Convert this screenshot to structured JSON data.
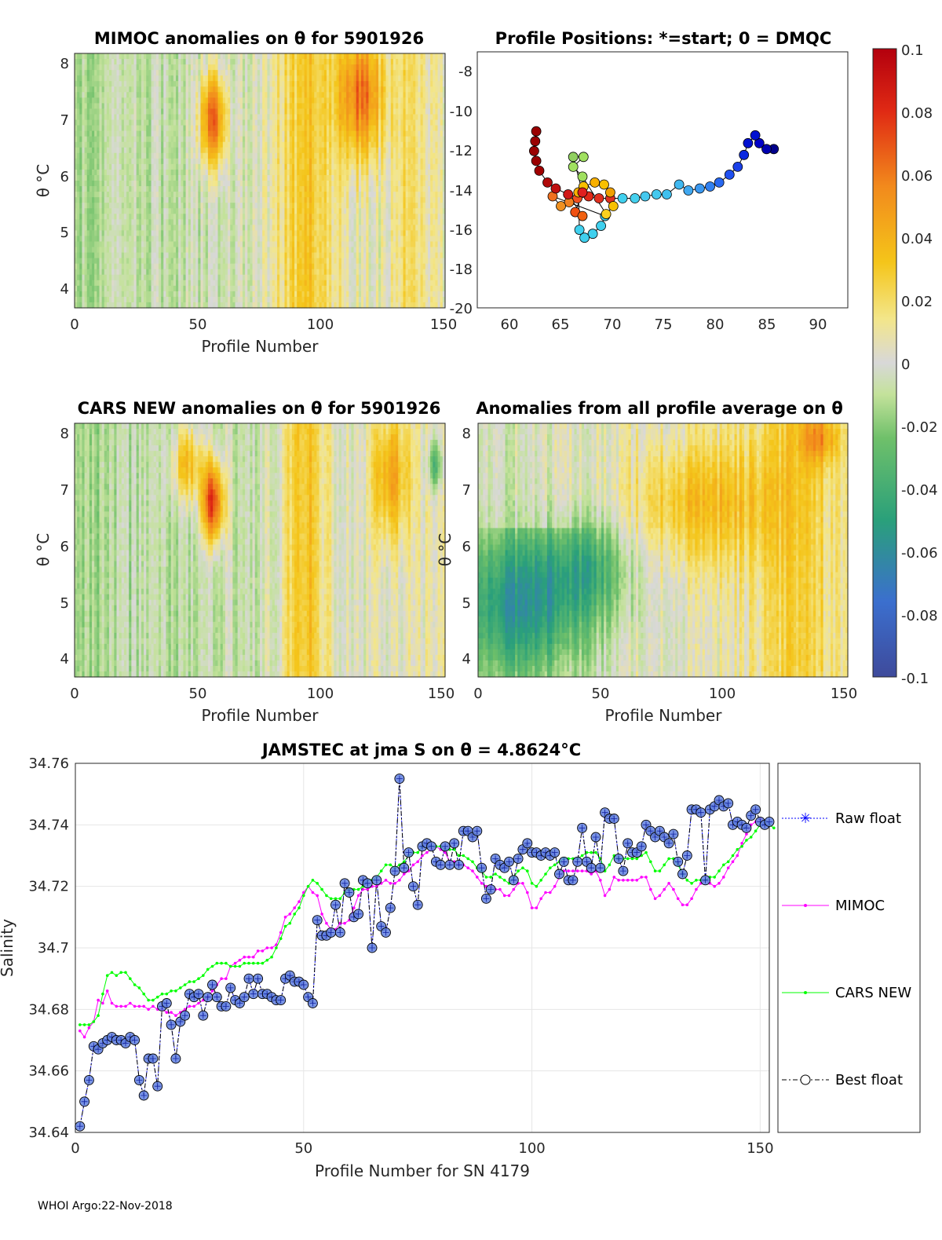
{
  "footer": "WHOI Argo:22-Nov-2018",
  "colors": {
    "raw": "#0000ff",
    "mimoc": "#ff00ff",
    "cars": "#00ff00",
    "best": "#000000",
    "marker_fill": "#6080e0"
  },
  "panels": {
    "mimoc_anom": {
      "title": "MIMOC anomalies on θ  for 5901926",
      "ylabel": "θ °C",
      "xlabel": "Profile Number",
      "xticks": [
        "0",
        "50",
        "100",
        "150"
      ],
      "yticks": [
        "4",
        "5",
        "6",
        "7",
        "8"
      ]
    },
    "positions": {
      "title": "Profile Positions: *=start; 0 = DMQC",
      "xticks": [
        "60",
        "65",
        "70",
        "75",
        "80",
        "85",
        "90"
      ],
      "yticks": [
        "-8",
        "-10",
        "-12",
        "-14",
        "-16",
        "-18",
        "-20"
      ]
    },
    "cars_anom": {
      "title": "CARS NEW anomalies on θ for 5901926",
      "ylabel": "θ °C",
      "xlabel": "Profile Number",
      "xticks": [
        "0",
        "50",
        "100",
        "150"
      ],
      "yticks": [
        "4",
        "5",
        "6",
        "7",
        "8"
      ]
    },
    "avg_anom": {
      "title": "Anomalies from all profile average on θ",
      "ylabel": "θ °C",
      "xlabel": "Profile Number",
      "xticks": [
        "0",
        "50",
        "100",
        "150"
      ],
      "yticks": [
        "4",
        "5",
        "6",
        "7",
        "8"
      ]
    }
  },
  "colorbar": {
    "ticks": [
      "0.1",
      "0.08",
      "0.06",
      "0.04",
      "0.02",
      "0",
      "-0.02",
      "-0.04",
      "-0.06",
      "-0.08",
      "-0.1"
    ]
  },
  "chart_data": {
    "type": "line",
    "title": "JAMSTEC at jma S on θ = 4.8624°C",
    "xlabel": "Profile Number for SN 4179",
    "ylabel": "Salinity",
    "xlim": [
      0,
      152
    ],
    "ylim": [
      34.64,
      34.76
    ],
    "xticks": [
      "0",
      "50",
      "100",
      "150"
    ],
    "yticks": [
      "34.64",
      "34.66",
      "34.68",
      "34.7",
      "34.72",
      "34.74",
      "34.76"
    ],
    "legend": {
      "position": "outside-right",
      "entries": [
        "Raw float",
        "MIMOC",
        "CARS NEW",
        "Best float"
      ]
    },
    "series": [
      {
        "name": "Raw float",
        "values": [
          34.642,
          34.65,
          34.657,
          34.668,
          34.667,
          34.669,
          34.67,
          34.671,
          34.67,
          34.67,
          34.669,
          34.671,
          34.67,
          34.657,
          34.652,
          34.664,
          34.664,
          34.655,
          34.681,
          34.682,
          34.675,
          34.664,
          34.676,
          34.678,
          34.685,
          34.684,
          34.685,
          34.678,
          34.684,
          34.688,
          34.684,
          34.681,
          34.681,
          34.687,
          34.683,
          34.682,
          34.684,
          34.69,
          34.685,
          34.69,
          34.685,
          34.685,
          34.684,
          34.683,
          34.683,
          34.69,
          34.691,
          34.689,
          34.689,
          34.688,
          34.684,
          34.682,
          34.709,
          34.704,
          34.704,
          34.705,
          34.714,
          34.705,
          34.721,
          34.718,
          34.71,
          34.711,
          34.722,
          34.721,
          34.7,
          34.722,
          34.707,
          34.705,
          34.713,
          34.725,
          34.755,
          34.726,
          34.731,
          34.72,
          34.714,
          34.733,
          34.734,
          34.733,
          34.728,
          34.727,
          34.733,
          34.727,
          34.734,
          34.727,
          34.738,
          34.738,
          34.736,
          34.738,
          34.726,
          34.716,
          34.719,
          34.729,
          34.727,
          34.726,
          34.728,
          34.722,
          34.729,
          34.732,
          34.734,
          34.731,
          34.731,
          34.73,
          34.731,
          34.73,
          34.731,
          34.724,
          34.728,
          34.722,
          34.722,
          34.728,
          34.739,
          34.728,
          34.726,
          34.736,
          34.726,
          34.744,
          34.742,
          34.742,
          34.729,
          34.725,
          34.734,
          34.731,
          34.731,
          34.733,
          34.74,
          34.738,
          34.736,
          34.738,
          34.736,
          34.734,
          34.737,
          34.728,
          34.724,
          34.73,
          34.745,
          34.745,
          34.744,
          34.722,
          34.745,
          34.746,
          34.748,
          34.746,
          34.747,
          34.74,
          34.741,
          34.74,
          34.739,
          34.743,
          34.745,
          34.741,
          34.74,
          34.741
        ]
      },
      {
        "name": "MIMOC",
        "values": [
          34.673,
          34.671,
          34.674,
          34.676,
          34.683,
          34.682,
          34.686,
          34.682,
          34.681,
          34.681,
          34.681,
          34.682,
          34.681,
          34.681,
          34.681,
          34.68,
          34.681,
          34.68,
          34.68,
          34.679,
          34.679,
          34.678,
          34.679,
          34.68,
          34.681,
          34.681,
          34.682,
          34.683,
          34.684,
          34.686,
          34.688,
          34.69,
          34.69,
          34.694,
          34.695,
          34.696,
          34.697,
          34.697,
          34.697,
          34.699,
          34.699,
          34.7,
          34.7,
          34.701,
          34.705,
          34.71,
          34.711,
          34.713,
          34.715,
          34.718,
          34.72,
          34.718,
          34.717,
          34.711,
          34.708,
          34.706,
          34.706,
          34.708,
          34.708,
          34.709,
          34.713,
          34.717,
          34.719,
          34.719,
          34.72,
          34.72,
          34.721,
          34.722,
          34.721,
          34.721,
          34.722,
          34.724,
          34.725,
          34.727,
          34.728,
          34.73,
          34.731,
          34.732,
          34.733,
          34.732,
          34.731,
          34.728,
          34.728,
          34.727,
          34.727,
          34.726,
          34.725,
          34.723,
          34.721,
          34.72,
          34.72,
          34.719,
          34.719,
          34.717,
          34.717,
          34.719,
          34.721,
          34.721,
          34.718,
          34.713,
          34.713,
          34.716,
          34.718,
          34.718,
          34.72,
          34.723,
          34.725,
          34.725,
          34.725,
          34.725,
          34.725,
          34.725,
          34.724,
          34.725,
          34.722,
          34.717,
          34.719,
          34.723,
          34.722,
          34.722,
          34.722,
          34.722,
          34.722,
          34.723,
          34.723,
          34.719,
          34.716,
          34.717,
          34.719,
          34.721,
          34.719,
          34.716,
          34.714,
          34.714,
          34.716,
          34.719,
          34.721,
          34.722,
          34.721,
          34.72,
          34.721,
          34.723,
          34.726,
          34.728,
          34.73,
          34.734,
          34.737,
          34.74,
          34.741,
          34.742,
          34.741,
          34.74
        ]
      },
      {
        "name": "CARS NEW",
        "values": [
          34.675,
          34.675,
          34.675,
          34.676,
          34.678,
          34.685,
          34.691,
          34.692,
          34.691,
          34.692,
          34.692,
          34.69,
          34.688,
          34.687,
          34.685,
          34.683,
          34.683,
          34.684,
          34.685,
          34.685,
          34.686,
          34.686,
          34.687,
          34.688,
          34.689,
          34.689,
          34.69,
          34.691,
          34.693,
          34.694,
          34.695,
          34.695,
          34.695,
          34.694,
          34.694,
          34.694,
          34.695,
          34.695,
          34.695,
          34.695,
          34.695,
          34.696,
          34.697,
          34.7,
          34.703,
          34.707,
          34.708,
          34.711,
          34.713,
          34.717,
          34.72,
          34.722,
          34.721,
          34.719,
          34.717,
          34.716,
          34.716,
          34.716,
          34.718,
          34.719,
          34.719,
          34.719,
          34.72,
          34.722,
          34.722,
          34.723,
          34.725,
          34.727,
          34.727,
          34.726,
          34.727,
          34.728,
          34.73,
          34.731,
          34.731,
          34.733,
          34.733,
          34.733,
          34.733,
          34.733,
          34.732,
          34.732,
          34.732,
          34.73,
          34.73,
          34.729,
          34.728,
          34.726,
          34.725,
          34.723,
          34.723,
          34.724,
          34.723,
          34.722,
          34.721,
          34.723,
          34.725,
          34.726,
          34.725,
          34.721,
          34.72,
          34.722,
          34.724,
          34.726,
          34.727,
          34.728,
          34.729,
          34.729,
          34.729,
          34.729,
          34.73,
          34.731,
          34.731,
          34.731,
          34.729,
          34.725,
          34.727,
          34.73,
          34.729,
          34.729,
          34.729,
          34.729,
          34.729,
          34.73,
          34.731,
          34.728,
          34.725,
          34.725,
          34.727,
          34.729,
          34.729,
          34.727,
          34.724,
          34.722,
          34.721,
          34.722,
          34.722,
          34.722,
          34.723,
          34.723,
          34.725,
          34.727,
          34.728,
          34.73,
          34.732,
          34.733,
          34.735,
          34.736,
          34.738,
          34.74,
          34.741,
          34.74,
          34.739
        ]
      },
      {
        "name": "Best float",
        "values": [
          34.642,
          34.65,
          34.657,
          34.668,
          34.667,
          34.669,
          34.67,
          34.671,
          34.67,
          34.67,
          34.669,
          34.671,
          34.67,
          34.657,
          34.652,
          34.664,
          34.664,
          34.655,
          34.681,
          34.682,
          34.675,
          34.664,
          34.676,
          34.678,
          34.685,
          34.684,
          34.685,
          34.678,
          34.684,
          34.688,
          34.684,
          34.681,
          34.681,
          34.687,
          34.683,
          34.682,
          34.684,
          34.69,
          34.685,
          34.69,
          34.685,
          34.685,
          34.684,
          34.683,
          34.683,
          34.69,
          34.691,
          34.689,
          34.689,
          34.688,
          34.684,
          34.682,
          34.709,
          34.704,
          34.704,
          34.705,
          34.714,
          34.705,
          34.721,
          34.718,
          34.71,
          34.711,
          34.722,
          34.721,
          34.7,
          34.722,
          34.707,
          34.705,
          34.713,
          34.725,
          34.755,
          34.726,
          34.731,
          34.72,
          34.714,
          34.733,
          34.734,
          34.733,
          34.728,
          34.727,
          34.733,
          34.727,
          34.734,
          34.727,
          34.738,
          34.738,
          34.736,
          34.738,
          34.726,
          34.716,
          34.719,
          34.729,
          34.727,
          34.726,
          34.728,
          34.722,
          34.729,
          34.732,
          34.734,
          34.731,
          34.731,
          34.73,
          34.731,
          34.73,
          34.731,
          34.724,
          34.728,
          34.722,
          34.722,
          34.728,
          34.739,
          34.728,
          34.726,
          34.736,
          34.726,
          34.744,
          34.742,
          34.742,
          34.729,
          34.725,
          34.734,
          34.731,
          34.731,
          34.733,
          34.74,
          34.738,
          34.736,
          34.738,
          34.736,
          34.734,
          34.737,
          34.728,
          34.724,
          34.73,
          34.745,
          34.745,
          34.744,
          34.722,
          34.745,
          34.746,
          34.748,
          34.746,
          34.747,
          34.74,
          34.741,
          34.74,
          34.739,
          34.743,
          34.745,
          34.741,
          34.74,
          34.741
        ]
      }
    ]
  }
}
